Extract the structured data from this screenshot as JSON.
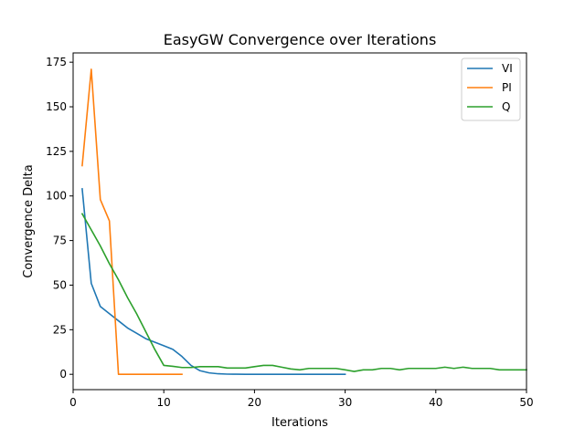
{
  "chart_data": {
    "type": "line",
    "title": "EasyGW Convergence over Iterations",
    "xlabel": "Iterations",
    "ylabel": "Convergence Delta",
    "xlim": [
      0,
      50
    ],
    "ylim": [
      -8.6,
      180.2
    ],
    "xticks": [
      0,
      10,
      20,
      30,
      40,
      50
    ],
    "yticks": [
      0,
      25,
      50,
      75,
      100,
      125,
      150,
      175
    ],
    "grid": false,
    "legend_position": "top-right",
    "series": [
      {
        "name": "VI",
        "color": "#1f77b4",
        "x": [
          1,
          2,
          3,
          4,
          5,
          6,
          7,
          8,
          9,
          10,
          11,
          12,
          13,
          14,
          15,
          16,
          17,
          18,
          19,
          20,
          21,
          22,
          23,
          24,
          25,
          26,
          27,
          28,
          29,
          30
        ],
        "y": [
          104,
          51,
          38,
          34,
          30,
          26,
          23,
          20,
          18,
          16,
          14,
          10,
          5,
          2,
          0.8,
          0.3,
          0.1,
          0.05,
          0,
          0,
          0,
          0,
          0,
          0,
          0,
          0,
          0,
          0,
          0,
          0
        ]
      },
      {
        "name": "PI",
        "color": "#ff7f0e",
        "x": [
          1,
          2,
          3,
          4,
          5,
          6,
          7,
          8,
          9,
          10,
          11,
          12
        ],
        "y": [
          117,
          171,
          98,
          86,
          0,
          0,
          0,
          0,
          0,
          0,
          0,
          0
        ]
      },
      {
        "name": "Q",
        "color": "#2ca02c",
        "x": [
          1,
          2,
          3,
          4,
          5,
          6,
          7,
          8,
          9,
          10,
          11,
          12,
          13,
          14,
          15,
          16,
          17,
          18,
          19,
          20,
          21,
          22,
          23,
          24,
          25,
          26,
          27,
          28,
          29,
          30,
          31,
          32,
          33,
          34,
          35,
          36,
          37,
          38,
          39,
          40,
          41,
          42,
          43,
          44,
          45,
          46,
          47,
          48,
          49,
          50
        ],
        "y": [
          90,
          81,
          72,
          62,
          53,
          43,
          34,
          24,
          14,
          5,
          4.5,
          3.8,
          3.8,
          4.3,
          4.3,
          4.3,
          3.5,
          3.5,
          3.5,
          4.3,
          5,
          5,
          4,
          3,
          2.5,
          3.3,
          3.3,
          3.3,
          3.3,
          2.5,
          1.6,
          2.5,
          2.5,
          3.3,
          3.3,
          2.5,
          3.3,
          3.3,
          3.3,
          3.3,
          4,
          3.3,
          4,
          3.3,
          3.3,
          3.3,
          2.5,
          2.5,
          2.5,
          2.5
        ]
      }
    ]
  }
}
